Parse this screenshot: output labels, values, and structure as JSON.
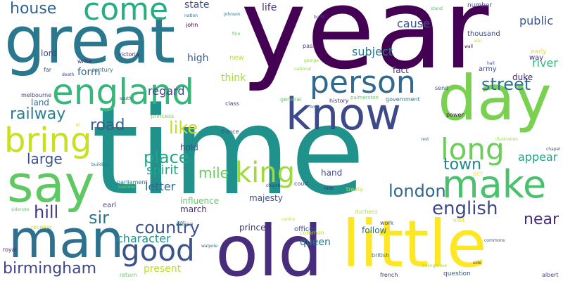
{
  "words": [
    {
      "text": "year",
      "color": "#440154"
    },
    {
      "text": "time",
      "color": "#21918c"
    },
    {
      "text": "great",
      "color": "#2a788e"
    },
    {
      "text": "day",
      "color": "#7ad151"
    },
    {
      "text": "old",
      "color": "#472d7b"
    },
    {
      "text": "little",
      "color": "#fde725"
    },
    {
      "text": "man",
      "color": "#2c728e"
    },
    {
      "text": "say",
      "color": "#5ec962"
    },
    {
      "text": "england",
      "color": "#35b779"
    },
    {
      "text": "know",
      "color": "#3e4989"
    },
    {
      "text": "make",
      "color": "#4ac16d"
    },
    {
      "text": "person",
      "color": "#31688e"
    },
    {
      "text": "come",
      "color": "#27ad81"
    },
    {
      "text": "bring",
      "color": "#c8e020"
    },
    {
      "text": "good",
      "color": "#3b528b"
    },
    {
      "text": "long",
      "color": "#6ccd5a"
    },
    {
      "text": "king",
      "color": "#9fda3a"
    },
    {
      "text": "english",
      "color": "#3e4989"
    },
    {
      "text": "country",
      "color": "#3b528b"
    },
    {
      "text": "london",
      "color": "#31688e"
    },
    {
      "text": "birmingham",
      "color": "#404688"
    },
    {
      "text": "place",
      "color": "#21a585"
    },
    {
      "text": "street",
      "color": "#2c728e"
    },
    {
      "text": "house",
      "color": "#32648e"
    },
    {
      "text": "railway",
      "color": "#287d8e"
    },
    {
      "text": "like",
      "color": "#c2df23"
    },
    {
      "text": "town",
      "color": "#25838e"
    },
    {
      "text": "road",
      "color": "#34618d"
    },
    {
      "text": "large",
      "color": "#3b528b"
    },
    {
      "text": "hill",
      "color": "#453781"
    },
    {
      "text": "sir",
      "color": "#2a768e"
    },
    {
      "text": "near",
      "color": "#472c7a"
    },
    {
      "text": "character",
      "color": "#20928c"
    },
    {
      "text": "mile",
      "color": "#65cb5e"
    },
    {
      "text": "spirit",
      "color": "#21a585"
    },
    {
      "text": "letter",
      "color": "#31688e"
    },
    {
      "text": "appear",
      "color": "#1fa187"
    },
    {
      "text": "river",
      "color": "#38b977"
    },
    {
      "text": "subject",
      "color": "#2a788e"
    },
    {
      "text": "cause",
      "color": "#3b528b"
    },
    {
      "text": "public",
      "color": "#3b528b"
    },
    {
      "text": "state",
      "color": "#3e4a89"
    },
    {
      "text": "life",
      "color": "#46327e"
    },
    {
      "text": "high",
      "color": "#355f8d"
    },
    {
      "text": "think",
      "color": "#a5db36"
    },
    {
      "text": "regard",
      "color": "#3e4989"
    },
    {
      "text": "form",
      "color": "#31688e"
    },
    {
      "text": "present",
      "color": "#bddf26"
    },
    {
      "text": "queen",
      "color": "#2a788e"
    },
    {
      "text": "lord",
      "color": "#3e4989"
    },
    {
      "text": "land",
      "color": "#2d708e"
    },
    {
      "text": "fact",
      "color": "#46327e"
    },
    {
      "text": "hand",
      "color": "#3e4989"
    },
    {
      "text": "follow",
      "color": "#2d708e"
    },
    {
      "text": "prince",
      "color": "#46327e"
    },
    {
      "text": "majesty",
      "color": "#3b528b"
    },
    {
      "text": "march",
      "color": "#472d7b"
    },
    {
      "text": "influence",
      "color": "#5ec962"
    },
    {
      "text": "hold",
      "color": "#3e4989"
    },
    {
      "text": "duke",
      "color": "#482878"
    },
    {
      "text": "army",
      "color": "#3b528b"
    },
    {
      "text": "thousand",
      "color": "#3e4989"
    },
    {
      "text": "number",
      "color": "#414487"
    },
    {
      "text": "way",
      "color": "#46327e"
    },
    {
      "text": "early",
      "color": "#dfe318"
    },
    {
      "text": "new",
      "color": "#bddf26"
    },
    {
      "text": "earl",
      "color": "#3e4989"
    },
    {
      "text": "office",
      "color": "#277f8e"
    },
    {
      "text": "officer",
      "color": "#3b528b"
    },
    {
      "text": "history",
      "color": "#46327e"
    },
    {
      "text": "government",
      "color": "#2a788e"
    },
    {
      "text": "general",
      "color": "#5ec962"
    },
    {
      "text": "power",
      "color": "#440154"
    },
    {
      "text": "court",
      "color": "#3e4989"
    },
    {
      "text": "law",
      "color": "#46327e"
    },
    {
      "text": "act",
      "color": "#fde725"
    },
    {
      "text": "send",
      "color": "#3b528b"
    },
    {
      "text": "work",
      "color": "#3e4989"
    },
    {
      "text": "british",
      "color": "#2a788e"
    },
    {
      "text": "common",
      "color": "#b5de2b"
    },
    {
      "text": "question",
      "color": "#3b528b"
    },
    {
      "text": "french",
      "color": "#46327e"
    },
    {
      "text": "albert",
      "color": "#3e4989"
    },
    {
      "text": "duchess",
      "color": "#b5de2b"
    },
    {
      "text": "visit",
      "color": "#d8e219"
    },
    {
      "text": "treaty",
      "color": "#c8e020"
    },
    {
      "text": "parliament",
      "color": "#2a788e"
    },
    {
      "text": "receive",
      "color": "#c8e020"
    },
    {
      "text": "royal",
      "color": "#472d7b"
    },
    {
      "text": "return",
      "color": "#65cb5e"
    },
    {
      "text": "victoria",
      "color": "#472d7b"
    },
    {
      "text": "write",
      "color": "#482878"
    },
    {
      "text": "century",
      "color": "#2d708e"
    },
    {
      "text": "melbourne",
      "color": "#3e4989"
    },
    {
      "text": "princess",
      "color": "#73d056"
    },
    {
      "text": "class",
      "color": "#3e4989"
    },
    {
      "text": "france",
      "color": "#3b528b"
    },
    {
      "text": "church",
      "color": "#472d7b"
    },
    {
      "text": "pass",
      "color": "#46327e"
    },
    {
      "text": "george",
      "color": "#90d743"
    },
    {
      "text": "nation",
      "color": "#32648e"
    },
    {
      "text": "john",
      "color": "#440154"
    },
    {
      "text": "johnson",
      "color": "#2a788e"
    },
    {
      "text": "far",
      "color": "#3e4989"
    },
    {
      "text": "palmerston",
      "color": "#5ec962"
    },
    {
      "text": "national",
      "color": "#8fd744"
    },
    {
      "text": "bolingbroke",
      "color": "#a0da39"
    },
    {
      "text": "commons",
      "color": "#3b528b"
    },
    {
      "text": "walpole",
      "color": "#2d708e"
    },
    {
      "text": "sidenote",
      "color": "#5ec962"
    },
    {
      "text": "building",
      "color": "#2a788e"
    },
    {
      "text": "chapel",
      "color": "#3b528b"
    },
    {
      "text": "illustration",
      "color": "#9fda3a"
    },
    {
      "text": "death",
      "color": "#3e4989"
    },
    {
      "text": "hall",
      "color": "#3b528b"
    },
    {
      "text": "war",
      "color": "#c8e020"
    },
    {
      "text": "build",
      "color": "#3e4989"
    },
    {
      "text": "side",
      "color": "#414487"
    },
    {
      "text": "stand",
      "color": "#4ac16d"
    },
    {
      "text": "south",
      "color": "#3b528b"
    },
    {
      "text": "rest",
      "color": "#2a788e"
    },
    {
      "text": "ill",
      "color": "#b5de2b"
    },
    {
      "text": "fine",
      "color": "#65cb5e"
    },
    {
      "text": "body",
      "color": "#32648e"
    },
    {
      "text": "centre",
      "color": "#bddf26"
    },
    {
      "text": "member",
      "color": "#73d056"
    },
    {
      "text": "wall",
      "color": "#440154"
    }
  ]
}
